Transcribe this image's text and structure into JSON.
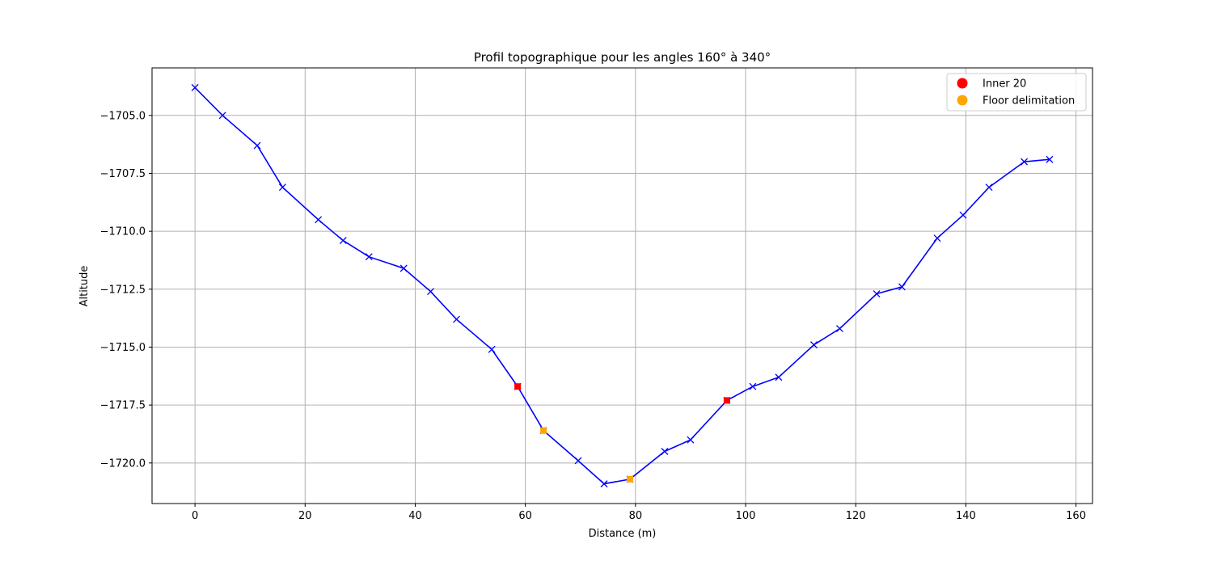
{
  "chart_data": {
    "type": "line",
    "title": "Profil topographique pour les angles 160° à 340°",
    "xlabel": "Distance (m)",
    "ylabel": "Altitude",
    "xlim": [
      -7.8,
      163.0
    ],
    "ylim": [
      -1721.75,
      -1702.95
    ],
    "xticks": [
      0,
      20,
      40,
      60,
      80,
      100,
      120,
      140,
      160
    ],
    "xtick_labels": [
      "0",
      "20",
      "40",
      "60",
      "80",
      "100",
      "120",
      "140",
      "160"
    ],
    "yticks": [
      -1705.0,
      -1707.5,
      -1710.0,
      -1712.5,
      -1715.0,
      -1717.5,
      -1720.0
    ],
    "ytick_labels": [
      "−1705.0",
      "−1707.5",
      "−1710.0",
      "−1712.5",
      "−1715.0",
      "−1717.5",
      "−1720.0"
    ],
    "grid": true,
    "legend_position": "top-right",
    "series": [
      {
        "role": "profile",
        "color": "#0000ff",
        "marker": "x",
        "x": [
          0.0,
          5.0,
          11.3,
          15.9,
          22.4,
          26.9,
          31.6,
          37.9,
          42.8,
          47.5,
          53.9,
          58.6,
          63.3,
          69.6,
          74.3,
          79.0,
          85.3,
          90.0,
          96.6,
          101.3,
          106.0,
          112.4,
          117.1,
          123.8,
          128.4,
          134.8,
          139.5,
          144.2,
          150.6,
          155.2
        ],
        "y": [
          -1703.8,
          -1705.0,
          -1706.3,
          -1708.1,
          -1709.5,
          -1710.4,
          -1711.1,
          -1711.6,
          -1712.6,
          -1713.8,
          -1715.1,
          -1716.7,
          -1718.6,
          -1719.9,
          -1720.9,
          -1720.7,
          -1719.5,
          -1719.0,
          -1717.3,
          -1716.7,
          -1716.3,
          -1714.9,
          -1714.2,
          -1712.7,
          -1712.4,
          -1710.3,
          -1709.3,
          -1708.1,
          -1707.0,
          -1706.9
        ]
      },
      {
        "name": "Inner 20",
        "color": "#ff0000",
        "marker": "o",
        "x": [
          58.6,
          96.6
        ],
        "y": [
          -1716.7,
          -1717.3
        ]
      },
      {
        "name": "Floor delimitation",
        "color": "#ffa500",
        "marker": "o",
        "x": [
          63.3,
          79.0
        ],
        "y": [
          -1718.6,
          -1720.7
        ]
      }
    ]
  }
}
